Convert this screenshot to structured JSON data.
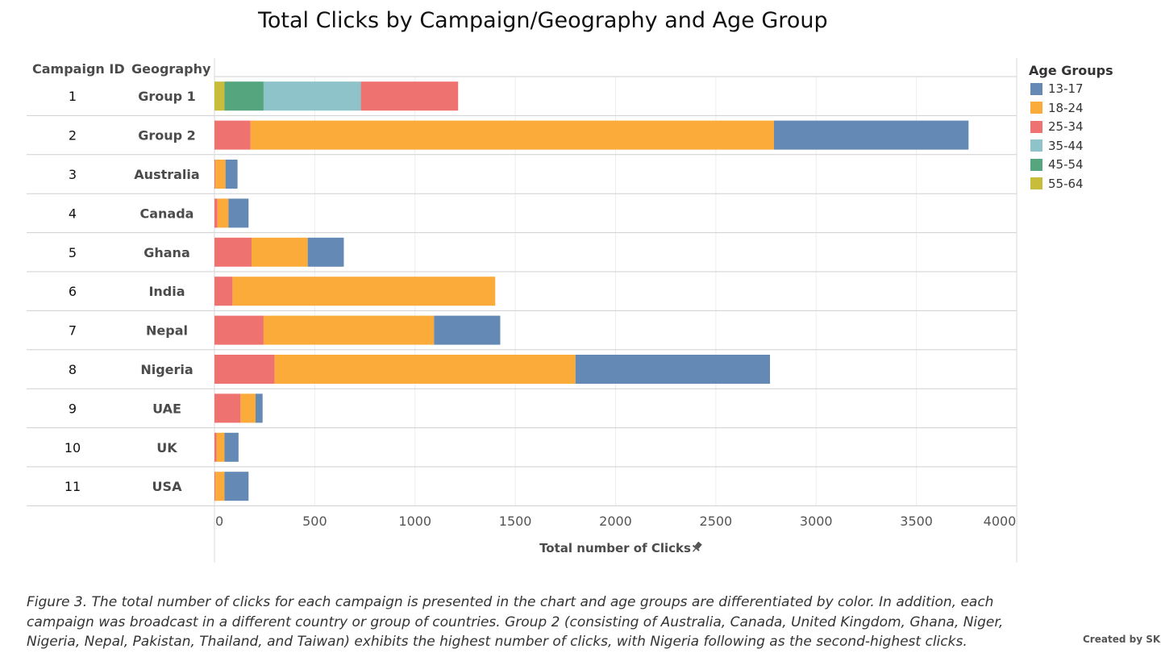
{
  "chart_data": {
    "type": "bar",
    "orientation": "horizontal",
    "stacked": true,
    "title": "Total Clicks by Campaign/Geography and Age Group",
    "row_headers": [
      "Campaign ID",
      "Geography"
    ],
    "campaign_ids": [
      "1",
      "2",
      "3",
      "4",
      "5",
      "6",
      "7",
      "8",
      "9",
      "10",
      "11"
    ],
    "categories": [
      "Group 1",
      "Group 2",
      "Australia",
      "Canada",
      "Ghana",
      "India",
      "Nepal",
      "Nigeria",
      "UAE",
      "UK",
      "USA"
    ],
    "xlabel": "Total number of Clicks",
    "xlim": [
      0,
      4000
    ],
    "xticks": [
      "0",
      "500",
      "1000",
      "1500",
      "2000",
      "2500",
      "3000",
      "3500",
      "4000"
    ],
    "stack_order": [
      "55-64",
      "45-54",
      "35-44",
      "25-34",
      "18-24",
      "13-17"
    ],
    "series": [
      {
        "name": "13-17",
        "color": "#6489b5",
        "values": [
          0,
          970,
          60,
          100,
          180,
          0,
          330,
          970,
          35,
          70,
          120
        ]
      },
      {
        "name": "18-24",
        "color": "#fbab3a",
        "values": [
          0,
          2610,
          50,
          55,
          280,
          1310,
          850,
          1500,
          75,
          40,
          45
        ]
      },
      {
        "name": "25-34",
        "color": "#ee7370",
        "values": [
          485,
          180,
          5,
          15,
          185,
          90,
          245,
          300,
          130,
          10,
          5
        ]
      },
      {
        "name": "35-44",
        "color": "#8dc3c9",
        "values": [
          485,
          0,
          0,
          0,
          0,
          0,
          0,
          0,
          0,
          0,
          0
        ]
      },
      {
        "name": "45-54",
        "color": "#55a57e",
        "values": [
          195,
          0,
          0,
          0,
          0,
          0,
          0,
          0,
          0,
          0,
          0
        ]
      },
      {
        "name": "55-64",
        "color": "#c7bd3a",
        "values": [
          50,
          0,
          0,
          0,
          0,
          0,
          0,
          0,
          0,
          0,
          0
        ]
      }
    ],
    "legend": {
      "title": "Age Groups",
      "position": "right"
    },
    "grid": true
  },
  "caption": "Figure 3. The total number of clicks for each campaign is presented in the chart and age groups are differentiated by color. In addition, each campaign was broadcast in a different country or group of countries. Group 2 (consisting of Australia, Canada, United Kingdom, Ghana, Niger, Nigeria, Nepal, Pakistan, Thailand, and Taiwan) exhibits the highest number of clicks, with Nigeria following as the second-highest clicks.",
  "credit": "Created by SK",
  "icons": {
    "axis_pin": "pin-icon"
  }
}
